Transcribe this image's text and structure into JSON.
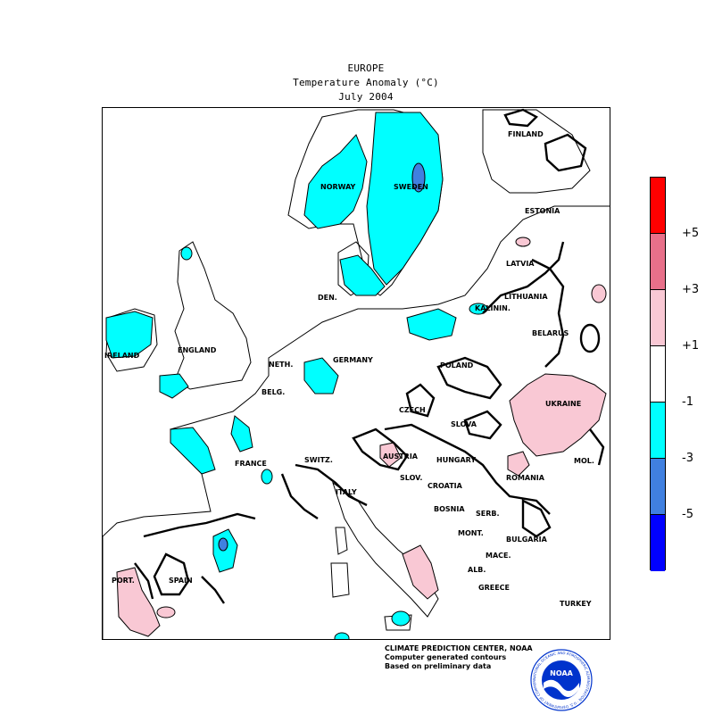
{
  "header": {
    "region": "EUROPE",
    "variable": "Temperature Anomaly (°C)",
    "period": "July 2004"
  },
  "legend": {
    "bins": [
      {
        "color": "#ff0000"
      },
      {
        "color": "#e8708a"
      },
      {
        "color": "#f9c8d4"
      },
      {
        "color": "#ffffff"
      },
      {
        "color": "#00ffff"
      },
      {
        "color": "#4080e0"
      },
      {
        "color": "#0000ff"
      }
    ],
    "ticks": [
      "+5",
      "+3",
      "+1",
      "-1",
      "-3",
      "-5"
    ]
  },
  "map": {
    "labels": {
      "finland": "FINLAND",
      "norway": "NORWAY",
      "sweden": "SWEDEN",
      "estonia": "ESTONIA",
      "latvia": "LATVIA",
      "lithuania": "LITHUANIA",
      "kaliningrad": "KALININ.",
      "belarus": "BELARUS",
      "denmark": "DEN.",
      "ireland": "IRELAND",
      "england": "ENGLAND",
      "netherlands": "NETH.",
      "germany": "GERMANY",
      "belgium": "BELG.",
      "poland": "POLAND",
      "ukraine": "UKRAINE",
      "czech": "CZECH",
      "slovakia": "SLOVA",
      "france": "FRANCE",
      "switzerland": "SWITZ.",
      "austria": "AUSTRIA",
      "hungary": "HUNGARY",
      "moldova": "MOL.",
      "romania": "ROMANIA",
      "slovenia": "SLOV.",
      "croatia": "CROATIA",
      "italy": "ITALY",
      "bosnia": "BOSNIA",
      "serbia": "SERB.",
      "montenegro": "MONT.",
      "bulgaria": "BULGARIA",
      "macedonia": "MACE.",
      "albania": "ALB.",
      "greece": "GREECE",
      "turkey": "TURKEY",
      "portugal": "PORT.",
      "spain": "SPAIN"
    }
  },
  "credits": {
    "line1": "CLIMATE PREDICTION CENTER, NOAA",
    "line2": "Computer generated contours",
    "line3": "Based on preliminary data"
  },
  "logo": {
    "text": "NOAA",
    "ring_text": "NATIONAL OCEANIC AND ATMOSPHERIC ADMINISTRATION · U.S. DEPARTMENT OF COMMERCE",
    "color": "#0033cc"
  }
}
